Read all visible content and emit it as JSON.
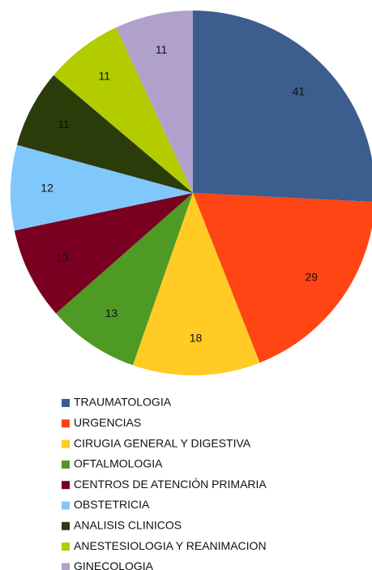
{
  "chart_data": {
    "type": "pie",
    "categories": [
      "TRAUMATOLOGIA",
      "URGENCIAS",
      "CIRUGIA GENERAL Y DIGESTIVA",
      "OFTALMOLOGIA",
      "CENTROS DE ATENCIÓN PRIMARIA",
      "OBSTETRICIA",
      "ANALISIS CLINICOS",
      "ANESTESIOLOGIA Y REANIMACION",
      "GINECOLOGIA"
    ],
    "values": [
      41,
      29,
      18,
      13,
      13,
      12,
      11,
      11,
      11
    ],
    "colors": [
      "#3b5e8e",
      "#ff4514",
      "#ffcb24",
      "#4e9a24",
      "#7a0022",
      "#80c8fb",
      "#2b3c0b",
      "#b2cc00",
      "#b0a0cc"
    ]
  }
}
